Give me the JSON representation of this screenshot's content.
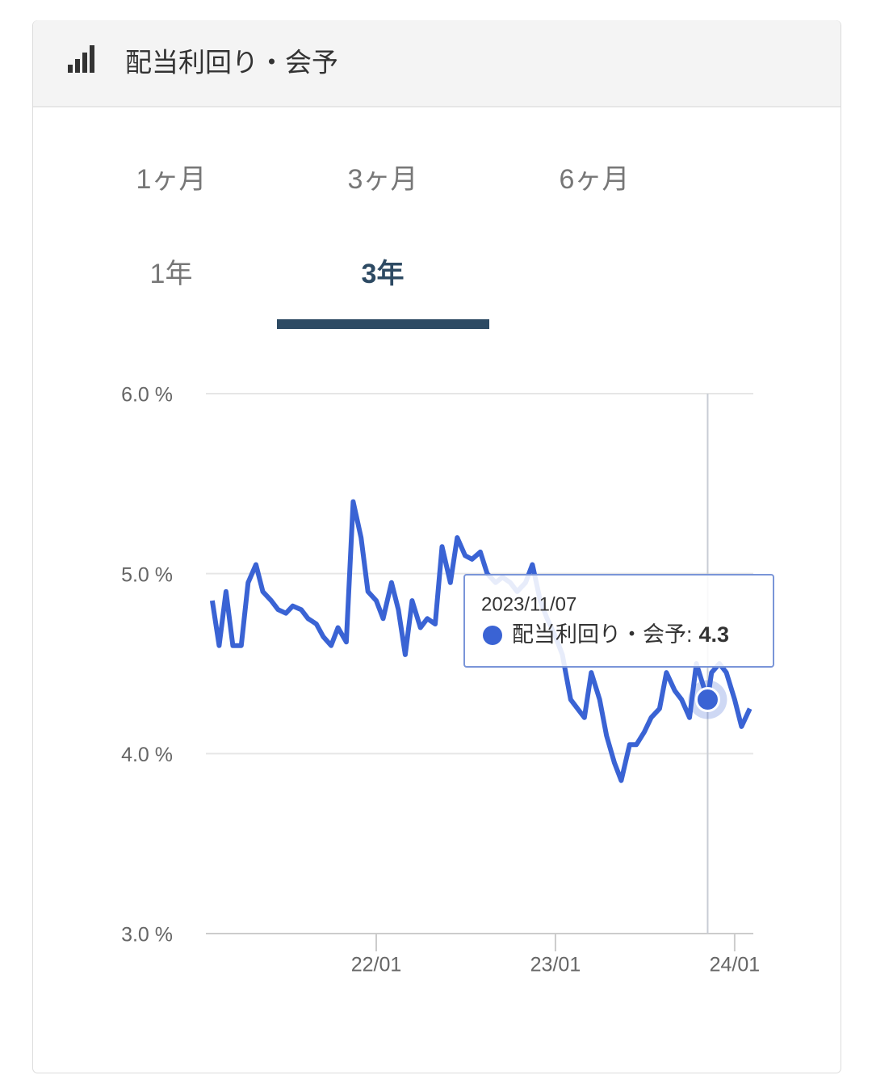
{
  "header": {
    "title": "配当利回り・会予"
  },
  "tabs": {
    "items": [
      "1ヶ月",
      "3ヶ月",
      "6ヶ月",
      "1年",
      "3年"
    ],
    "active": 4
  },
  "chart_data": {
    "type": "line",
    "x": [
      "2021-02-01",
      "2021-02-15",
      "2021-03-01",
      "2021-03-15",
      "2021-04-01",
      "2021-04-15",
      "2021-05-01",
      "2021-05-15",
      "2021-06-01",
      "2021-06-15",
      "2021-07-01",
      "2021-07-15",
      "2021-08-01",
      "2021-08-15",
      "2021-09-01",
      "2021-09-15",
      "2021-10-01",
      "2021-10-15",
      "2021-11-01",
      "2021-11-15",
      "2021-12-01",
      "2021-12-15",
      "2022-01-01",
      "2022-01-15",
      "2022-02-01",
      "2022-02-15",
      "2022-03-01",
      "2022-03-15",
      "2022-04-01",
      "2022-04-15",
      "2022-05-01",
      "2022-05-15",
      "2022-06-01",
      "2022-06-15",
      "2022-07-01",
      "2022-07-15",
      "2022-08-01",
      "2022-08-15",
      "2022-09-01",
      "2022-09-15",
      "2022-10-01",
      "2022-10-15",
      "2022-11-01",
      "2022-11-15",
      "2022-12-01",
      "2022-12-15",
      "2023-01-01",
      "2023-01-15",
      "2023-02-01",
      "2023-02-15",
      "2023-03-01",
      "2023-03-15",
      "2023-04-01",
      "2023-04-15",
      "2023-05-01",
      "2023-05-15",
      "2023-06-01",
      "2023-06-15",
      "2023-07-01",
      "2023-07-15",
      "2023-08-01",
      "2023-08-15",
      "2023-09-01",
      "2023-09-15",
      "2023-10-01",
      "2023-10-15",
      "2023-11-07",
      "2023-11-15",
      "2023-12-01",
      "2023-12-15",
      "2024-01-01",
      "2024-01-15",
      "2024-02-01"
    ],
    "series": [
      {
        "name": "配当利回り・会予",
        "color": "#3a63d4",
        "values": [
          4.85,
          4.6,
          4.9,
          4.6,
          4.6,
          4.95,
          5.05,
          4.9,
          4.85,
          4.8,
          4.78,
          4.82,
          4.8,
          4.75,
          4.72,
          4.65,
          4.6,
          4.7,
          4.62,
          5.4,
          5.2,
          4.9,
          4.85,
          4.75,
          4.95,
          4.8,
          4.55,
          4.85,
          4.7,
          4.75,
          4.72,
          5.15,
          4.95,
          5.2,
          5.1,
          5.08,
          5.12,
          5.0,
          4.95,
          4.98,
          4.95,
          4.9,
          4.95,
          5.05,
          4.85,
          4.75,
          4.65,
          4.55,
          4.3,
          4.25,
          4.2,
          4.45,
          4.3,
          4.1,
          3.95,
          3.85,
          4.05,
          4.05,
          4.12,
          4.2,
          4.25,
          4.45,
          4.35,
          4.3,
          4.2,
          4.5,
          4.3,
          4.45,
          4.5,
          4.45,
          4.3,
          4.15,
          4.25
        ]
      }
    ],
    "xlim": [
      "2021-01-19",
      "2024-02-08"
    ],
    "xticks": [
      {
        "value": "2022-01-01",
        "label": "22/01"
      },
      {
        "value": "2023-01-01",
        "label": "23/01"
      },
      {
        "value": "2024-01-01",
        "label": "24/01"
      }
    ],
    "ylim": [
      3,
      6
    ],
    "yticks": [
      {
        "value": 3,
        "label": "3.0 %"
      },
      {
        "value": 4,
        "label": "4.0 %"
      },
      {
        "value": 5,
        "label": "5.0 %"
      },
      {
        "value": 6,
        "label": "6.0 %"
      }
    ],
    "grid": true,
    "tooltip": {
      "index": 66,
      "date": "2023/11/07",
      "label": "配当利回り・会予:",
      "value": 4.3
    }
  }
}
